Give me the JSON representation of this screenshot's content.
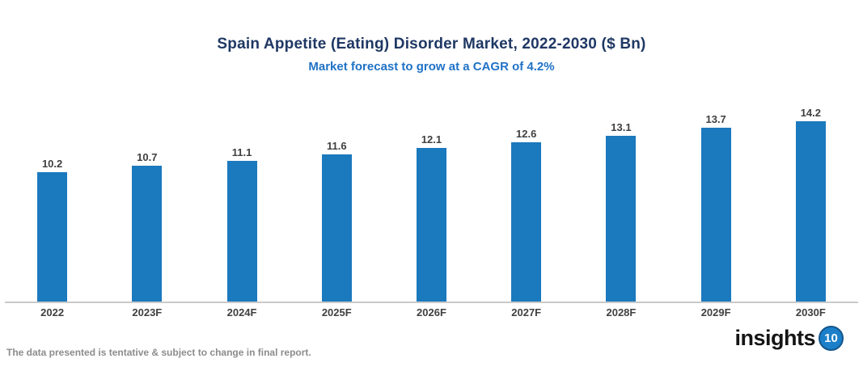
{
  "header": {
    "title": "Spain Appetite (Eating) Disorder Market, 2022-2030 ($ Bn)",
    "subtitle": "Market forecast to grow at a CAGR of 4.2%"
  },
  "footer": {
    "note": "The data presented is tentative & subject to change in final report.",
    "logo_text": "insights",
    "logo_badge": "10"
  },
  "colors": {
    "title": "#1F3864",
    "subtitle": "#1F72C6",
    "bar": "#1B79BE",
    "axis_line": "#C9C9C9",
    "value_label": "#3F3F3F",
    "tick_label": "#404040",
    "note": "#8C8C8C",
    "logo_badge_bg": "#1B7FC9"
  },
  "chart_data": {
    "type": "bar",
    "title": "Spain Appetite (Eating) Disorder Market, 2022-2030 ($ Bn)",
    "subtitle": "Market forecast to grow at a CAGR of 4.2%",
    "categories": [
      "2022",
      "2023F",
      "2024F",
      "2025F",
      "2026F",
      "2027F",
      "2028F",
      "2029F",
      "2030F"
    ],
    "values": [
      10.2,
      10.7,
      11.1,
      11.6,
      12.1,
      12.6,
      13.1,
      13.7,
      14.2
    ],
    "xlabel": "",
    "ylabel": "",
    "ylim": [
      0,
      15.5
    ],
    "grid": false,
    "legend": false,
    "bar_color": "#1B79BE",
    "value_labels": true
  }
}
